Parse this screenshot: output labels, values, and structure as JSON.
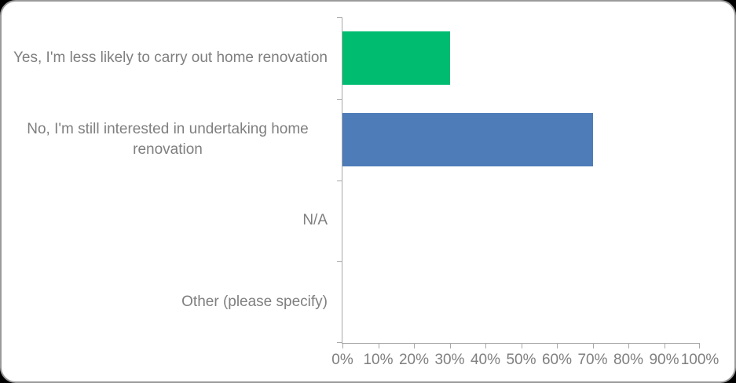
{
  "window": {
    "outer_background": "#000000"
  },
  "frame": {
    "fill": "#ffffff",
    "border_color": "#9b9b9b"
  },
  "chart_data": {
    "type": "bar",
    "orientation": "horizontal",
    "title": "",
    "xlabel": "",
    "ylabel": "",
    "categories": [
      "Yes, I'm less likely to carry out home renovation",
      "No, I'm still interested in undertaking home renovation",
      "N/A",
      "Other (please specify)"
    ],
    "values": [
      30,
      70,
      0,
      0
    ],
    "bar_colors": [
      "#00bc70",
      "#4e7cb8",
      "#4e7cb8",
      "#4e7cb8"
    ],
    "x_ticks": [
      "0%",
      "10%",
      "20%",
      "30%",
      "40%",
      "50%",
      "60%",
      "70%",
      "80%",
      "90%",
      "100%"
    ],
    "xlim": [
      0,
      100
    ],
    "grid": false,
    "legend": false,
    "axis_color": "#a8a8a8",
    "label_color": "#7f7f7f"
  }
}
